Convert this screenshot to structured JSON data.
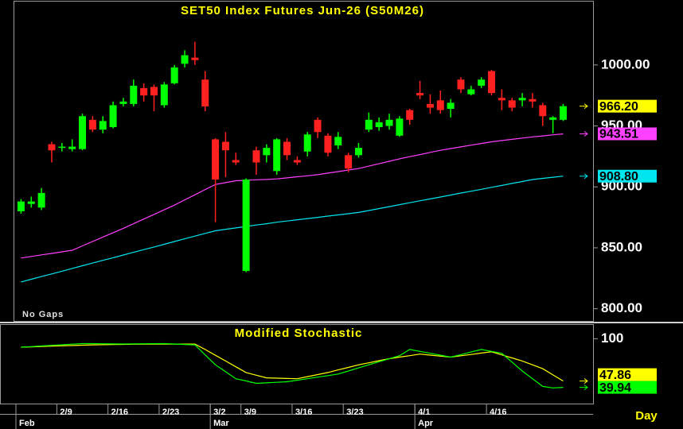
{
  "chart_data": [
    {
      "type": "candlestick",
      "title": "SET50 Index Futures Jun-26 (S50M26)",
      "annotation": "No Gaps",
      "up_color": "#00ff00",
      "down_color": "#ff2020",
      "open": [
        880,
        886,
        883,
        935,
        932,
        931,
        931,
        955,
        947,
        949,
        968,
        968,
        981,
        982,
        967,
        985,
        1001,
        1006,
        988,
        939,
        937,
        922,
        831,
        930,
        926,
        913,
        937,
        922,
        929,
        955,
        942,
        934,
        926,
        926,
        947,
        949,
        950,
        942,
        963,
        977,
        968,
        971,
        964,
        988,
        976,
        983,
        995,
        973,
        971,
        971,
        972,
        967,
        955,
        955
      ],
      "high": [
        890,
        892,
        899,
        937,
        936,
        939,
        960,
        958,
        958,
        970,
        973,
        988,
        985,
        984,
        986,
        1000,
        1012,
        1019,
        995,
        940,
        945,
        928,
        907,
        933,
        935,
        940,
        940,
        925,
        945,
        957,
        944,
        945,
        928,
        936,
        961,
        957,
        960,
        958,
        964,
        987,
        976,
        979,
        972,
        990,
        983,
        990,
        996,
        980,
        973,
        977,
        977,
        969,
        958,
        968
      ],
      "low": [
        878,
        883,
        881,
        920,
        929,
        929,
        930,
        945,
        944,
        948,
        966,
        966,
        970,
        962,
        965,
        984,
        998,
        1000,
        962,
        871,
        908,
        918,
        830,
        910,
        920,
        910,
        922,
        918,
        925,
        940,
        925,
        931,
        912,
        924,
        945,
        946,
        947,
        941,
        951,
        972,
        960,
        960,
        957,
        977,
        975,
        981,
        975,
        963,
        962,
        966,
        965,
        950,
        944,
        954
      ],
      "close": [
        888,
        888,
        895,
        930,
        933,
        933,
        958,
        947,
        954,
        967,
        970,
        983,
        975,
        975,
        984,
        998,
        1008,
        1004,
        966,
        906,
        930,
        920,
        906,
        920,
        932,
        939,
        926,
        920,
        943,
        945,
        928,
        941,
        915,
        932,
        955,
        953,
        955,
        956,
        955,
        975,
        965,
        963,
        969,
        980,
        980,
        988,
        977,
        971,
        965,
        973,
        970,
        958,
        957,
        966.2
      ],
      "close_label": "966.20",
      "series": [
        {
          "name": "MA1",
          "color": "#ff40ff",
          "last_label": "943.51",
          "values": [
            841.6,
            842.9,
            844.2,
            845.4,
            846.7,
            848,
            851.6,
            855.2,
            858.8,
            862.4,
            866,
            869.8,
            873.6,
            877.4,
            881.2,
            885,
            889.3,
            893.5,
            897.8,
            902,
            903.5,
            905,
            905.4,
            905.8,
            906.1,
            906.5,
            907.4,
            908.3,
            909.1,
            910,
            911.3,
            912.5,
            913.8,
            915,
            917,
            919,
            921,
            923,
            924.8,
            926.5,
            928.3,
            930,
            931.4,
            932.8,
            934.2,
            935.6,
            937,
            938,
            939,
            940,
            941,
            941.8,
            942.7,
            943.51
          ]
        },
        {
          "name": "MA2",
          "color": "#00e5ee",
          "last_label": "908.80",
          "values": [
            822,
            824.2,
            826.4,
            828.6,
            830.8,
            833.1,
            835.3,
            837.5,
            839.7,
            841.9,
            844.1,
            846.3,
            848.5,
            850.7,
            852.9,
            855.2,
            857.4,
            859.6,
            861.8,
            864,
            865.2,
            866.3,
            867.5,
            868.7,
            869.8,
            871,
            872,
            873,
            874,
            875,
            876,
            877,
            878,
            879,
            880.6,
            882.2,
            883.8,
            885.4,
            887,
            888.6,
            890.1,
            891.7,
            893.3,
            894.9,
            896.4,
            898,
            899.6,
            901.2,
            902.8,
            904.4,
            906,
            907,
            907.9,
            908.8
          ]
        }
      ],
      "ylim": [
        790,
        1052
      ],
      "yticks": [
        {
          "value": 800,
          "label": "800.00"
        },
        {
          "value": 850,
          "label": "850.00"
        },
        {
          "value": 900,
          "label": "900.00"
        },
        {
          "value": 950,
          "label": "950.00"
        },
        {
          "value": 1000,
          "label": "1000.00"
        }
      ]
    },
    {
      "type": "line",
      "title": "Modified Stochastic",
      "series": [
        {
          "name": "%D",
          "color": "#ffff00",
          "last_label": "47.86",
          "values": [
            89.6,
            90,
            90.4,
            90.8,
            91.2,
            91.6,
            92,
            92.4,
            92.6,
            92.8,
            93,
            93.2,
            93.4,
            93.4,
            93.4,
            93.4,
            93.4,
            93.4,
            86.7,
            79.6,
            72.5,
            65.4,
            58.3,
            55,
            51.7,
            51.4,
            51,
            50.7,
            53.2,
            55.8,
            58.3,
            61.5,
            64.6,
            67.8,
            70.3,
            72.9,
            75.4,
            77.3,
            79.1,
            81,
            79.8,
            78.5,
            77.3,
            79,
            80.6,
            82.3,
            83.9,
            80.1,
            76.3,
            72.5,
            67.8,
            63,
            55.4,
            47.86
          ]
        },
        {
          "name": "%K",
          "color": "#00ff00",
          "last_label": "39.94",
          "values": [
            89.6,
            90.3,
            91,
            91.8,
            92.5,
            93.3,
            94,
            94,
            93.8,
            93.6,
            93.5,
            93.6,
            93.8,
            93.9,
            94,
            93.5,
            92.9,
            92.4,
            80.1,
            67.8,
            59.3,
            50.7,
            47.9,
            45,
            45.6,
            46.3,
            46.9,
            48.8,
            50.7,
            52.6,
            54.5,
            56.4,
            60.2,
            64,
            67.8,
            71.6,
            75.3,
            79.1,
            86.7,
            84.4,
            82,
            79.7,
            77.3,
            80.4,
            83.6,
            86.7,
            84.4,
            82,
            71.1,
            60.2,
            50.7,
            41.2,
            39.3,
            39.94
          ]
        }
      ],
      "ylim": [
        20,
        117
      ],
      "yticks": [
        100
      ],
      "categories": [
        null,
        null,
        null,
        null,
        "2/9",
        null,
        null,
        null,
        null,
        "2/16",
        null,
        null,
        null,
        null,
        "2/23",
        null,
        null,
        null,
        null,
        "3/2",
        null,
        null,
        "3/9",
        null,
        null,
        null,
        null,
        "3/16",
        null,
        null,
        null,
        null,
        "3/23",
        null,
        null,
        null,
        null,
        null,
        null,
        "4/1",
        null,
        null,
        null,
        null,
        null,
        null,
        "4/16",
        null,
        null,
        null,
        null,
        null,
        null,
        null
      ],
      "months": [
        "Feb",
        null,
        null,
        null,
        null,
        null,
        null,
        null,
        null,
        null,
        null,
        null,
        null,
        null,
        null,
        null,
        null,
        null,
        null,
        "Mar",
        null,
        null,
        null,
        null,
        null,
        null,
        null,
        null,
        null,
        null,
        null,
        null,
        null,
        null,
        null,
        null,
        null,
        null,
        null,
        "Apr",
        null,
        null,
        null,
        null,
        null,
        null,
        null,
        null,
        null,
        null,
        null,
        null,
        null,
        null
      ],
      "x_label": "Day"
    }
  ]
}
